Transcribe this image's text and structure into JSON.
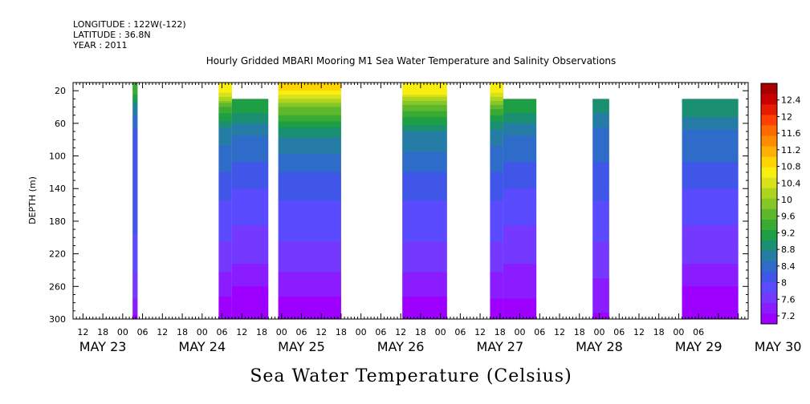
{
  "header": {
    "longitude": "LONGITUDE : 122W(-122)",
    "latitude": "LATITUDE : 36.8N",
    "year": "YEAR : 2011"
  },
  "chart_data": {
    "type": "heatmap",
    "title": "Hourly Gridded MBARI Mooring M1 Sea Water Temperature and Salinity Observations",
    "ylabel": "DEPTH (m)",
    "xlabel": "Sea Water Temperature (Celsius)",
    "y_ticks": [
      20,
      60,
      100,
      140,
      180,
      220,
      260,
      300
    ],
    "ylim": [
      300,
      10
    ],
    "y_inverted": true,
    "x_range_hours": [
      -15,
      189
    ],
    "x_origin_label": "MAY 23 00",
    "hour_tick_labels": [
      "12",
      "18",
      "00",
      "06",
      "12",
      "18",
      "00",
      "06",
      "12",
      "18",
      "00",
      "06",
      "12",
      "18",
      "00",
      "06",
      "12",
      "18",
      "00",
      "06",
      "12",
      "18",
      "00",
      "06",
      "12",
      "18",
      "00",
      "06",
      "12",
      "18",
      "00",
      "06"
    ],
    "hour_tick_values": [
      -12,
      -6,
      0,
      6,
      12,
      18,
      24,
      30,
      36,
      42,
      48,
      54,
      60,
      66,
      72,
      78,
      84,
      90,
      96,
      102,
      108,
      114,
      120,
      126,
      132,
      138,
      144,
      150,
      156,
      162,
      168,
      174
    ],
    "date_labels": [
      {
        "label": "MAY 23",
        "hour": -6
      },
      {
        "label": "MAY 24",
        "hour": 24
      },
      {
        "label": "MAY 25",
        "hour": 54
      },
      {
        "label": "MAY 26",
        "hour": 84
      },
      {
        "label": "MAY 27",
        "hour": 114
      },
      {
        "label": "MAY 28",
        "hour": 144
      },
      {
        "label": "MAY 29",
        "hour": 174
      },
      {
        "label": "MAY 30",
        "hour": 198
      }
    ],
    "colorbar": {
      "labels": [
        "7.2",
        "7.6",
        "8",
        "8.4",
        "8.8",
        "9.2",
        "9.6",
        "10",
        "10.4",
        "10.8",
        "11.2",
        "11.6",
        "12",
        "12.4"
      ],
      "colors": [
        "#9d00ff",
        "#8a1cff",
        "#7438ff",
        "#5a4bff",
        "#4056e8",
        "#2f6cc9",
        "#257da6",
        "#1a8f72",
        "#1e9e45",
        "#3aab32",
        "#5eb82c",
        "#86c626",
        "#aed420",
        "#d8e21a",
        "#f8ee10",
        "#ffd400",
        "#ffb000",
        "#ff8c00",
        "#ff6a00",
        "#ff4000",
        "#e81a00",
        "#c80000",
        "#a80000"
      ]
    },
    "segments": [
      {
        "start": 3.0,
        "end": 4.5,
        "top_depth": 20,
        "temps": [
          9.6,
          8.8,
          8.4,
          8.4,
          8.3,
          8.2,
          8.0,
          7.8,
          7.4
        ]
      },
      {
        "start": 29.0,
        "end": 33.0,
        "top_depth": 20,
        "temps": [
          10.8,
          9.6,
          8.8,
          8.5,
          8.2,
          8.0,
          7.8,
          7.5,
          7.2
        ]
      },
      {
        "start": 33.0,
        "end": 44.0,
        "top_depth": 40,
        "temps": [
          9.8,
          9.3,
          8.7,
          8.4,
          8.1,
          7.9,
          7.7,
          7.4,
          7.2
        ]
      },
      {
        "start": 47.0,
        "end": 66.0,
        "top_depth": 20,
        "temps": [
          10.9,
          9.9,
          9.0,
          8.5,
          8.2,
          8.0,
          7.8,
          7.5,
          7.2
        ]
      },
      {
        "start": 84.5,
        "end": 98.0,
        "top_depth": 20,
        "temps": [
          10.8,
          9.8,
          8.9,
          8.5,
          8.2,
          8.0,
          7.8,
          7.5,
          7.2
        ]
      },
      {
        "start": 111.0,
        "end": 115.0,
        "top_depth": 20,
        "temps": [
          10.8,
          9.7,
          8.8,
          8.5,
          8.2,
          8.0,
          7.8,
          7.5,
          7.3
        ]
      },
      {
        "start": 115.0,
        "end": 125.0,
        "top_depth": 40,
        "temps": [
          9.9,
          9.3,
          8.7,
          8.4,
          8.1,
          7.9,
          7.7,
          7.5,
          7.3
        ]
      },
      {
        "start": 142.0,
        "end": 147.0,
        "top_depth": 40,
        "temps": [
          9.6,
          9.0,
          8.6,
          8.4,
          8.2,
          8.0,
          7.8,
          7.6,
          7.4
        ]
      },
      {
        "start": 169.0,
        "end": 186.0,
        "top_depth": 40,
        "temps": [
          9.6,
          9.1,
          8.6,
          8.4,
          8.1,
          7.9,
          7.7,
          7.4,
          7.2
        ]
      }
    ]
  }
}
